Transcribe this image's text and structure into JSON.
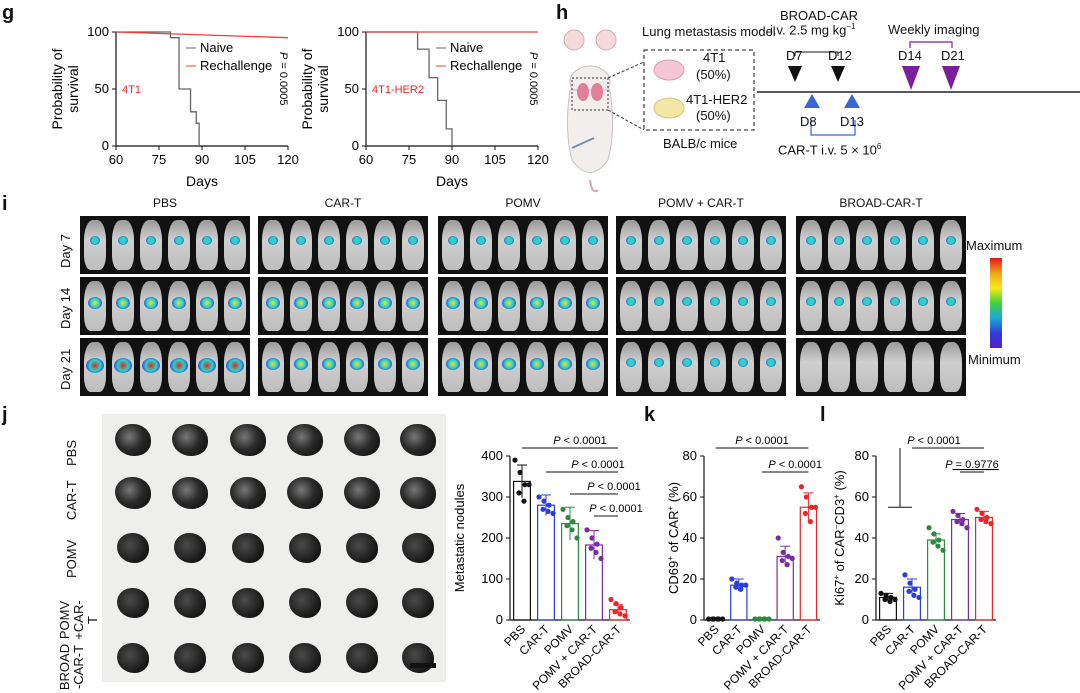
{
  "panels": {
    "g": {
      "label": "g",
      "ylabel_line1": "Probability of",
      "ylabel_line2": "survival",
      "xlabel": "Days",
      "legend": [
        "Naive",
        "Rechallenge"
      ],
      "pvalue": "P = 0.0005",
      "p_symbol": "P",
      "p_rest": " = 0.0005",
      "left_tag": "4T1",
      "right_tag": "4T1-HER2",
      "xticks": [
        "60",
        "75",
        "90",
        "105",
        "120"
      ],
      "yticks": [
        "0",
        "50",
        "100"
      ]
    },
    "h": {
      "label": "h",
      "model_title": "Lung metastasis model",
      "tumor1": "4T1",
      "tumor1_pct": "(50%)",
      "tumor2": "4T1-HER2",
      "tumor2_pct": "(50%)",
      "mice": "BALB/c mice",
      "broad_title": "BROAD-CAR",
      "broad_dose": "i.v. 2.5 mg kg",
      "broad_dose_sup": "−1",
      "imaging": "Weekly imaging",
      "days_top": [
        "D7",
        "D12",
        "D14",
        "D21"
      ],
      "days_bottom": [
        "D8",
        "D13"
      ],
      "cart": "CAR-T  i.v.  5 × 10",
      "cart_sup": "6"
    },
    "i": {
      "label": "i",
      "groups": [
        "PBS",
        "CAR-T",
        "POMV",
        "POMV + CAR-T",
        "BROAD-CAR-T"
      ],
      "days": [
        "Day 7",
        "Day 14",
        "Day 21"
      ],
      "scale_max": "Maximum",
      "scale_min": "Minimum"
    },
    "j": {
      "label": "j",
      "row_labels": [
        "PBS",
        "CAR-T",
        "POMV",
        "POMV +CAR-T",
        "BROAD -CAR-T"
      ]
    },
    "k": {
      "label": "k"
    },
    "l": {
      "label": "l"
    }
  },
  "chart_data": [
    {
      "type": "line",
      "title": "4T1",
      "xlabel": "Days",
      "ylabel": "Probability of survival",
      "xlim": [
        60,
        120
      ],
      "ylim": [
        0,
        100
      ],
      "series": [
        {
          "name": "Naive",
          "color": "#666666",
          "x": [
            60,
            79,
            79,
            82,
            82,
            86,
            86,
            88,
            88,
            89,
            89
          ],
          "y": [
            100,
            100,
            95,
            95,
            50,
            50,
            30,
            30,
            20,
            20,
            0
          ]
        },
        {
          "name": "Rechallenge",
          "color": "#e8413c",
          "x": [
            60,
            120
          ],
          "y": [
            100,
            95
          ]
        }
      ],
      "annotation": "P = 0.0005"
    },
    {
      "type": "line",
      "title": "4T1-HER2",
      "xlabel": "Days",
      "ylabel": "Probability of survival",
      "xlim": [
        60,
        120
      ],
      "ylim": [
        0,
        100
      ],
      "series": [
        {
          "name": "Naive",
          "color": "#666666",
          "x": [
            60,
            78,
            78,
            82,
            82,
            85,
            85,
            88,
            88,
            90,
            90
          ],
          "y": [
            100,
            100,
            85,
            85,
            60,
            60,
            40,
            40,
            15,
            15,
            0
          ]
        },
        {
          "name": "Rechallenge",
          "color": "#e8413c",
          "x": [
            60,
            120
          ],
          "y": [
            100,
            100
          ]
        }
      ],
      "annotation": "P = 0.0005"
    },
    {
      "type": "bar",
      "ylabel": "Metastatic nodules",
      "categories": [
        "PBS",
        "CAR-T",
        "POMV",
        "POMV + CAR-T",
        "BROAD-CAR-T"
      ],
      "colors": [
        "#111111",
        "#2b3fd6",
        "#2d8a3e",
        "#7a2da0",
        "#e8262b"
      ],
      "values": [
        338,
        280,
        235,
        183,
        25
      ],
      "errors": [
        40,
        25,
        40,
        35,
        12
      ],
      "points": [
        [
          390,
          360,
          330,
          310,
          290,
          330
        ],
        [
          300,
          290,
          280,
          270,
          265,
          260
        ],
        [
          270,
          250,
          240,
          230,
          220,
          200
        ],
        [
          220,
          200,
          185,
          175,
          165,
          150
        ],
        [
          50,
          40,
          30,
          20,
          15,
          10
        ]
      ],
      "ylim": [
        0,
        400
      ],
      "yticks": [
        0,
        100,
        200,
        300,
        400
      ],
      "comparisons": [
        "P < 0.0001",
        "P < 0.0001",
        "P < 0.0001",
        "P < 0.0001"
      ]
    },
    {
      "type": "bar",
      "ylabel": "CD69+ of CAR+ (%)",
      "ylabel_main": "CD69",
      "ylabel_sup": "+",
      "ylabel_mid": " of CAR",
      "ylabel_sup2": "+",
      "ylabel_end": " (%)",
      "categories": [
        "PBS",
        "CAR-T",
        "POMV",
        "POMV + CAR-T",
        "BROAD-CAR-T"
      ],
      "colors": [
        "#111111",
        "#2b3fd6",
        "#2d8a3e",
        "#7a2da0",
        "#e8262b"
      ],
      "values": [
        0.5,
        17,
        0.5,
        31,
        55
      ],
      "errors": [
        0.2,
        3,
        0.2,
        5,
        7
      ],
      "points": [
        [
          0.5,
          0.5,
          0.5,
          0.5,
          0.5,
          0.5
        ],
        [
          20,
          18,
          17,
          16,
          15,
          17
        ],
        [
          0.5,
          0.5,
          0.5,
          0.5,
          0.5,
          0.5
        ],
        [
          40,
          33,
          31,
          29,
          27,
          30
        ],
        [
          65,
          60,
          55,
          52,
          48,
          55
        ]
      ],
      "ylim": [
        0,
        80
      ],
      "yticks": [
        0,
        20,
        40,
        60,
        80
      ],
      "comparisons": [
        "P < 0.0001",
        "P < 0.0001"
      ]
    },
    {
      "type": "bar",
      "ylabel": "Ki67+ of CAR-CD3+ (%)",
      "ylabel_main": "Ki67",
      "ylabel_sup": "+",
      "ylabel_mid": " of CAR",
      "ylabel_sup2": "−",
      "ylabel_mid2": "CD3",
      "ylabel_sup3": "+",
      "ylabel_end": " (%)",
      "categories": [
        "PBS",
        "CAR-T",
        "POMV",
        "POMV + CAR-T",
        "BROAD-CAR-T"
      ],
      "colors": [
        "#111111",
        "#2b3fd6",
        "#2d8a3e",
        "#7a2da0",
        "#e8262b"
      ],
      "values": [
        11,
        16,
        39,
        49,
        50
      ],
      "errors": [
        2,
        4,
        3,
        3,
        3
      ],
      "points": [
        [
          13,
          12,
          11,
          10,
          9,
          10
        ],
        [
          22,
          18,
          15,
          14,
          12,
          11
        ],
        [
          45,
          42,
          39,
          38,
          36,
          34
        ],
        [
          53,
          51,
          49,
          48,
          47,
          45
        ],
        [
          54,
          52,
          50,
          49,
          48,
          47
        ]
      ],
      "ylim": [
        0,
        80
      ],
      "yticks": [
        0,
        20,
        40,
        60,
        80
      ],
      "comparisons": [
        "P < 0.0001",
        "P = 0.9776"
      ]
    }
  ]
}
